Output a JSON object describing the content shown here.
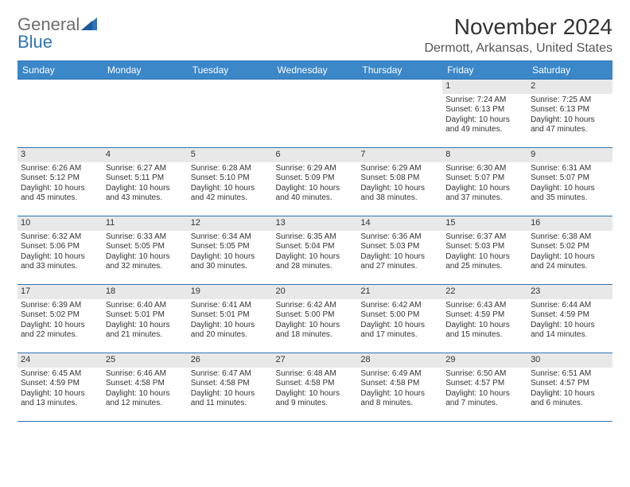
{
  "brand": {
    "word1": "General",
    "word2": "Blue"
  },
  "title": "November 2024",
  "location": "Dermott, Arkansas, United States",
  "colors": {
    "header_bg": "#3b87c8",
    "header_border": "#2f74b5",
    "daynum_bg": "#e8e8e8",
    "text": "#333333",
    "logo_gray": "#6d6d6d",
    "logo_blue": "#2f74b5"
  },
  "weekdays": [
    "Sunday",
    "Monday",
    "Tuesday",
    "Wednesday",
    "Thursday",
    "Friday",
    "Saturday"
  ],
  "weeks": [
    [
      {
        "day": "",
        "sunrise": "",
        "sunset": "",
        "daylight1": "",
        "daylight2": ""
      },
      {
        "day": "",
        "sunrise": "",
        "sunset": "",
        "daylight1": "",
        "daylight2": ""
      },
      {
        "day": "",
        "sunrise": "",
        "sunset": "",
        "daylight1": "",
        "daylight2": ""
      },
      {
        "day": "",
        "sunrise": "",
        "sunset": "",
        "daylight1": "",
        "daylight2": ""
      },
      {
        "day": "",
        "sunrise": "",
        "sunset": "",
        "daylight1": "",
        "daylight2": ""
      },
      {
        "day": "1",
        "sunrise": "Sunrise: 7:24 AM",
        "sunset": "Sunset: 6:13 PM",
        "daylight1": "Daylight: 10 hours",
        "daylight2": "and 49 minutes."
      },
      {
        "day": "2",
        "sunrise": "Sunrise: 7:25 AM",
        "sunset": "Sunset: 6:13 PM",
        "daylight1": "Daylight: 10 hours",
        "daylight2": "and 47 minutes."
      }
    ],
    [
      {
        "day": "3",
        "sunrise": "Sunrise: 6:26 AM",
        "sunset": "Sunset: 5:12 PM",
        "daylight1": "Daylight: 10 hours",
        "daylight2": "and 45 minutes."
      },
      {
        "day": "4",
        "sunrise": "Sunrise: 6:27 AM",
        "sunset": "Sunset: 5:11 PM",
        "daylight1": "Daylight: 10 hours",
        "daylight2": "and 43 minutes."
      },
      {
        "day": "5",
        "sunrise": "Sunrise: 6:28 AM",
        "sunset": "Sunset: 5:10 PM",
        "daylight1": "Daylight: 10 hours",
        "daylight2": "and 42 minutes."
      },
      {
        "day": "6",
        "sunrise": "Sunrise: 6:29 AM",
        "sunset": "Sunset: 5:09 PM",
        "daylight1": "Daylight: 10 hours",
        "daylight2": "and 40 minutes."
      },
      {
        "day": "7",
        "sunrise": "Sunrise: 6:29 AM",
        "sunset": "Sunset: 5:08 PM",
        "daylight1": "Daylight: 10 hours",
        "daylight2": "and 38 minutes."
      },
      {
        "day": "8",
        "sunrise": "Sunrise: 6:30 AM",
        "sunset": "Sunset: 5:07 PM",
        "daylight1": "Daylight: 10 hours",
        "daylight2": "and 37 minutes."
      },
      {
        "day": "9",
        "sunrise": "Sunrise: 6:31 AM",
        "sunset": "Sunset: 5:07 PM",
        "daylight1": "Daylight: 10 hours",
        "daylight2": "and 35 minutes."
      }
    ],
    [
      {
        "day": "10",
        "sunrise": "Sunrise: 6:32 AM",
        "sunset": "Sunset: 5:06 PM",
        "daylight1": "Daylight: 10 hours",
        "daylight2": "and 33 minutes."
      },
      {
        "day": "11",
        "sunrise": "Sunrise: 6:33 AM",
        "sunset": "Sunset: 5:05 PM",
        "daylight1": "Daylight: 10 hours",
        "daylight2": "and 32 minutes."
      },
      {
        "day": "12",
        "sunrise": "Sunrise: 6:34 AM",
        "sunset": "Sunset: 5:05 PM",
        "daylight1": "Daylight: 10 hours",
        "daylight2": "and 30 minutes."
      },
      {
        "day": "13",
        "sunrise": "Sunrise: 6:35 AM",
        "sunset": "Sunset: 5:04 PM",
        "daylight1": "Daylight: 10 hours",
        "daylight2": "and 28 minutes."
      },
      {
        "day": "14",
        "sunrise": "Sunrise: 6:36 AM",
        "sunset": "Sunset: 5:03 PM",
        "daylight1": "Daylight: 10 hours",
        "daylight2": "and 27 minutes."
      },
      {
        "day": "15",
        "sunrise": "Sunrise: 6:37 AM",
        "sunset": "Sunset: 5:03 PM",
        "daylight1": "Daylight: 10 hours",
        "daylight2": "and 25 minutes."
      },
      {
        "day": "16",
        "sunrise": "Sunrise: 6:38 AM",
        "sunset": "Sunset: 5:02 PM",
        "daylight1": "Daylight: 10 hours",
        "daylight2": "and 24 minutes."
      }
    ],
    [
      {
        "day": "17",
        "sunrise": "Sunrise: 6:39 AM",
        "sunset": "Sunset: 5:02 PM",
        "daylight1": "Daylight: 10 hours",
        "daylight2": "and 22 minutes."
      },
      {
        "day": "18",
        "sunrise": "Sunrise: 6:40 AM",
        "sunset": "Sunset: 5:01 PM",
        "daylight1": "Daylight: 10 hours",
        "daylight2": "and 21 minutes."
      },
      {
        "day": "19",
        "sunrise": "Sunrise: 6:41 AM",
        "sunset": "Sunset: 5:01 PM",
        "daylight1": "Daylight: 10 hours",
        "daylight2": "and 20 minutes."
      },
      {
        "day": "20",
        "sunrise": "Sunrise: 6:42 AM",
        "sunset": "Sunset: 5:00 PM",
        "daylight1": "Daylight: 10 hours",
        "daylight2": "and 18 minutes."
      },
      {
        "day": "21",
        "sunrise": "Sunrise: 6:42 AM",
        "sunset": "Sunset: 5:00 PM",
        "daylight1": "Daylight: 10 hours",
        "daylight2": "and 17 minutes."
      },
      {
        "day": "22",
        "sunrise": "Sunrise: 6:43 AM",
        "sunset": "Sunset: 4:59 PM",
        "daylight1": "Daylight: 10 hours",
        "daylight2": "and 15 minutes."
      },
      {
        "day": "23",
        "sunrise": "Sunrise: 6:44 AM",
        "sunset": "Sunset: 4:59 PM",
        "daylight1": "Daylight: 10 hours",
        "daylight2": "and 14 minutes."
      }
    ],
    [
      {
        "day": "24",
        "sunrise": "Sunrise: 6:45 AM",
        "sunset": "Sunset: 4:59 PM",
        "daylight1": "Daylight: 10 hours",
        "daylight2": "and 13 minutes."
      },
      {
        "day": "25",
        "sunrise": "Sunrise: 6:46 AM",
        "sunset": "Sunset: 4:58 PM",
        "daylight1": "Daylight: 10 hours",
        "daylight2": "and 12 minutes."
      },
      {
        "day": "26",
        "sunrise": "Sunrise: 6:47 AM",
        "sunset": "Sunset: 4:58 PM",
        "daylight1": "Daylight: 10 hours",
        "daylight2": "and 11 minutes."
      },
      {
        "day": "27",
        "sunrise": "Sunrise: 6:48 AM",
        "sunset": "Sunset: 4:58 PM",
        "daylight1": "Daylight: 10 hours",
        "daylight2": "and 9 minutes."
      },
      {
        "day": "28",
        "sunrise": "Sunrise: 6:49 AM",
        "sunset": "Sunset: 4:58 PM",
        "daylight1": "Daylight: 10 hours",
        "daylight2": "and 8 minutes."
      },
      {
        "day": "29",
        "sunrise": "Sunrise: 6:50 AM",
        "sunset": "Sunset: 4:57 PM",
        "daylight1": "Daylight: 10 hours",
        "daylight2": "and 7 minutes."
      },
      {
        "day": "30",
        "sunrise": "Sunrise: 6:51 AM",
        "sunset": "Sunset: 4:57 PM",
        "daylight1": "Daylight: 10 hours",
        "daylight2": "and 6 minutes."
      }
    ]
  ]
}
